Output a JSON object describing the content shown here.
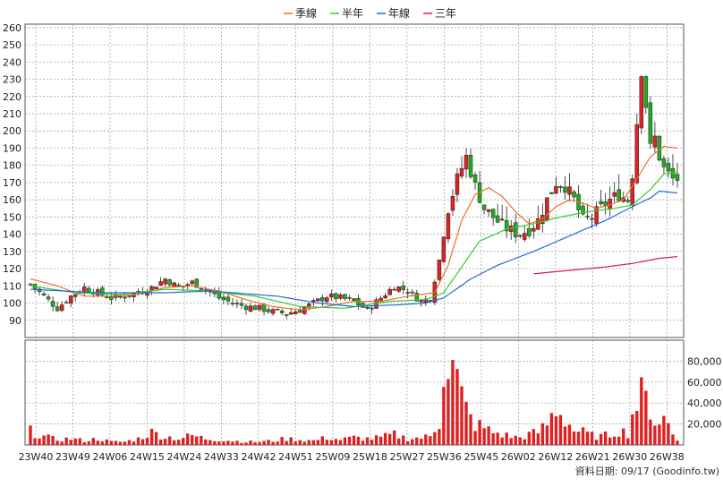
{
  "chart_data": {
    "type": "candlestick",
    "legend": [
      {
        "name": "季線",
        "color": "#e8722a"
      },
      {
        "name": "半年",
        "color": "#33cc33"
      },
      {
        "name": "年線",
        "color": "#1f6bd6"
      },
      {
        "name": "三年",
        "color": "#d61f4a"
      }
    ],
    "price_axis": {
      "min": 80,
      "max": 262,
      "ticks": [
        90,
        100,
        110,
        120,
        130,
        140,
        150,
        160,
        170,
        180,
        190,
        200,
        210,
        220,
        230,
        240,
        250,
        260
      ]
    },
    "volume_axis": {
      "min": 0,
      "max": 100000,
      "ticks": [
        "20,000",
        "40,000",
        "60,000",
        "80,000"
      ],
      "tick_values": [
        20000,
        40000,
        60000,
        80000
      ]
    },
    "x_labels": [
      "23W40",
      "23W49",
      "24W06",
      "24W15",
      "24W24",
      "24W33",
      "24W42",
      "24W51",
      "25W09",
      "25W18",
      "25W27",
      "25W36",
      "25W45",
      "26W02",
      "26W12",
      "26W21",
      "26W30",
      "26W38"
    ],
    "grid": true,
    "up_color": "#dd2222",
    "down_color": "#22aa22",
    "close_anchors": [
      [
        0,
        111
      ],
      [
        3,
        104
      ],
      [
        6,
        97
      ],
      [
        9,
        104
      ],
      [
        12,
        109
      ],
      [
        15,
        106
      ],
      [
        18,
        103
      ],
      [
        21,
        104
      ],
      [
        24,
        106
      ],
      [
        27,
        109
      ],
      [
        30,
        114
      ],
      [
        33,
        109
      ],
      [
        36,
        112
      ],
      [
        39,
        108
      ],
      [
        42,
        103
      ],
      [
        45,
        100
      ],
      [
        48,
        98
      ],
      [
        51,
        97
      ],
      [
        54,
        95
      ],
      [
        57,
        94
      ],
      [
        60,
        96
      ],
      [
        63,
        100
      ],
      [
        66,
        104
      ],
      [
        69,
        103
      ],
      [
        72,
        101
      ],
      [
        75,
        96
      ],
      [
        78,
        103
      ],
      [
        81,
        110
      ],
      [
        84,
        107
      ],
      [
        87,
        101
      ],
      [
        89,
        103
      ],
      [
        91,
        125
      ],
      [
        93,
        155
      ],
      [
        95,
        172
      ],
      [
        97,
        185
      ],
      [
        99,
        168
      ],
      [
        101,
        155
      ],
      [
        103,
        150
      ],
      [
        105,
        145
      ],
      [
        107,
        142
      ],
      [
        109,
        140
      ],
      [
        111,
        143
      ],
      [
        113,
        148
      ],
      [
        115,
        160
      ],
      [
        117,
        170
      ],
      [
        119,
        168
      ],
      [
        121,
        160
      ],
      [
        123,
        148
      ],
      [
        125,
        150
      ],
      [
        127,
        155
      ],
      [
        129,
        160
      ],
      [
        131,
        163
      ],
      [
        133,
        160
      ],
      [
        134,
        175
      ],
      [
        135,
        205
      ],
      [
        136,
        235
      ],
      [
        137,
        215
      ],
      [
        138,
        190
      ],
      [
        139,
        196
      ],
      [
        140,
        185
      ],
      [
        141,
        178
      ],
      [
        142,
        175
      ],
      [
        143,
        172
      ],
      [
        144,
        172
      ]
    ],
    "volume_anchors": [
      [
        0,
        13000
      ],
      [
        3,
        8000
      ],
      [
        6,
        5000
      ],
      [
        9,
        6000
      ],
      [
        12,
        4000
      ],
      [
        15,
        6000
      ],
      [
        18,
        3000
      ],
      [
        21,
        3000
      ],
      [
        24,
        6000
      ],
      [
        27,
        12000
      ],
      [
        30,
        8000
      ],
      [
        33,
        6000
      ],
      [
        36,
        9000
      ],
      [
        39,
        6000
      ],
      [
        42,
        5000
      ],
      [
        45,
        4000
      ],
      [
        48,
        3000
      ],
      [
        51,
        3000
      ],
      [
        54,
        4000
      ],
      [
        57,
        6000
      ],
      [
        60,
        5000
      ],
      [
        63,
        4000
      ],
      [
        66,
        7000
      ],
      [
        69,
        5000
      ],
      [
        72,
        7000
      ],
      [
        75,
        6000
      ],
      [
        78,
        7000
      ],
      [
        81,
        10000
      ],
      [
        84,
        6000
      ],
      [
        87,
        7000
      ],
      [
        89,
        8000
      ],
      [
        91,
        22000
      ],
      [
        92,
        82000
      ],
      [
        93,
        77000
      ],
      [
        94,
        72000
      ],
      [
        95,
        61000
      ],
      [
        96,
        45000
      ],
      [
        97,
        34000
      ],
      [
        98,
        25000
      ],
      [
        99,
        20000
      ],
      [
        101,
        16000
      ],
      [
        103,
        12000
      ],
      [
        105,
        10000
      ],
      [
        107,
        8000
      ],
      [
        109,
        7000
      ],
      [
        111,
        10000
      ],
      [
        113,
        12000
      ],
      [
        115,
        20000
      ],
      [
        117,
        35000
      ],
      [
        119,
        25000
      ],
      [
        121,
        14000
      ],
      [
        123,
        12000
      ],
      [
        125,
        9000
      ],
      [
        127,
        8000
      ],
      [
        129,
        10000
      ],
      [
        131,
        14000
      ],
      [
        133,
        11000
      ],
      [
        134,
        30000
      ],
      [
        135,
        40000
      ],
      [
        136,
        46000
      ],
      [
        137,
        42000
      ],
      [
        138,
        38000
      ],
      [
        139,
        22000
      ],
      [
        140,
        24000
      ],
      [
        141,
        25000
      ],
      [
        142,
        20000
      ],
      [
        143,
        10000
      ],
      [
        144,
        5000
      ]
    ],
    "ma_quarter": {
      "start": 0,
      "anchors": [
        [
          0,
          114
        ],
        [
          6,
          110
        ],
        [
          12,
          104
        ],
        [
          18,
          104
        ],
        [
          24,
          105
        ],
        [
          30,
          109
        ],
        [
          36,
          110
        ],
        [
          42,
          107
        ],
        [
          48,
          102
        ],
        [
          54,
          98
        ],
        [
          60,
          96
        ],
        [
          66,
          98
        ],
        [
          72,
          101
        ],
        [
          78,
          101
        ],
        [
          84,
          104
        ],
        [
          90,
          106
        ],
        [
          93,
          122
        ],
        [
          96,
          148
        ],
        [
          99,
          163
        ],
        [
          102,
          167
        ],
        [
          105,
          162
        ],
        [
          108,
          153
        ],
        [
          111,
          146
        ],
        [
          114,
          149
        ],
        [
          117,
          156
        ],
        [
          120,
          160
        ],
        [
          123,
          158
        ],
        [
          126,
          155
        ],
        [
          129,
          157
        ],
        [
          132,
          160
        ],
        [
          135,
          172
        ],
        [
          138,
          185
        ],
        [
          141,
          191
        ],
        [
          144,
          190
        ]
      ]
    },
    "ma_half": {
      "start": 0,
      "anchors": [
        [
          0,
          110
        ],
        [
          10,
          106
        ],
        [
          20,
          105
        ],
        [
          30,
          108
        ],
        [
          40,
          107
        ],
        [
          50,
          104
        ],
        [
          60,
          98
        ],
        [
          70,
          97
        ],
        [
          80,
          101
        ],
        [
          88,
          102
        ],
        [
          92,
          106
        ],
        [
          96,
          121
        ],
        [
          100,
          136
        ],
        [
          106,
          143
        ],
        [
          112,
          146
        ],
        [
          118,
          150
        ],
        [
          124,
          153
        ],
        [
          130,
          155
        ],
        [
          134,
          157
        ],
        [
          138,
          166
        ],
        [
          141,
          175
        ],
        [
          144,
          176
        ]
      ]
    },
    "ma_year": {
      "start": 0,
      "anchors": [
        [
          0,
          108
        ],
        [
          15,
          106
        ],
        [
          30,
          106
        ],
        [
          40,
          107
        ],
        [
          55,
          104
        ],
        [
          64,
          100
        ],
        [
          72,
          98
        ],
        [
          82,
          99
        ],
        [
          88,
          100
        ],
        [
          92,
          103
        ],
        [
          98,
          114
        ],
        [
          104,
          122
        ],
        [
          112,
          130
        ],
        [
          120,
          139
        ],
        [
          128,
          148
        ],
        [
          134,
          156
        ],
        [
          138,
          161
        ],
        [
          140,
          165
        ],
        [
          144,
          164
        ]
      ]
    },
    "ma_three": {
      "start": 112,
      "anchors": [
        [
          112,
          117
        ],
        [
          120,
          119
        ],
        [
          128,
          121
        ],
        [
          134,
          123
        ],
        [
          140,
          126
        ],
        [
          144,
          127
        ]
      ]
    },
    "footer": "資料日期: 09/17  (Goodinfo.tw)"
  }
}
